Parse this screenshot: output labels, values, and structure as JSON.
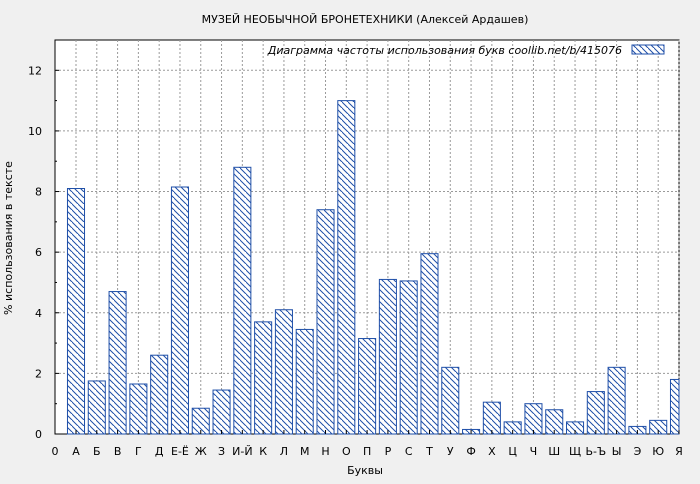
{
  "chart_data": {
    "type": "bar",
    "title": "МУЗЕЙ НЕОБЫЧНОЙ БРОНЕТЕХНИКИ (Алексей Ардашев)",
    "xlabel": "Буквы",
    "ylabel": "% использования в тексте",
    "ylim": [
      0,
      13
    ],
    "yticks": [
      0,
      2,
      4,
      6,
      8,
      10,
      12
    ],
    "grid": true,
    "legend_position": "top-right",
    "x_axis_start_label": "0",
    "categories": [
      "А",
      "Б",
      "В",
      "Г",
      "Д",
      "Е-Ё",
      "Ж",
      "З",
      "И-Й",
      "К",
      "Л",
      "М",
      "Н",
      "О",
      "П",
      "Р",
      "С",
      "Т",
      "У",
      "Ф",
      "Х",
      "Ц",
      "Ч",
      "Ш",
      "Щ",
      "Ь-Ъ",
      "Ы",
      "Э",
      "Ю",
      "Я"
    ],
    "series": [
      {
        "name": "Диаграмма частоты использования букв  coollib.net/b/415076",
        "color": "#1f4fa8",
        "values": [
          8.1,
          1.75,
          4.7,
          1.65,
          2.6,
          8.15,
          0.85,
          1.45,
          8.8,
          3.7,
          4.1,
          3.45,
          7.4,
          11.0,
          3.15,
          5.1,
          5.05,
          5.95,
          2.2,
          0.15,
          1.05,
          0.4,
          1.0,
          0.8,
          0.4,
          1.4,
          2.2,
          0.25,
          0.45,
          1.8
        ]
      }
    ]
  }
}
